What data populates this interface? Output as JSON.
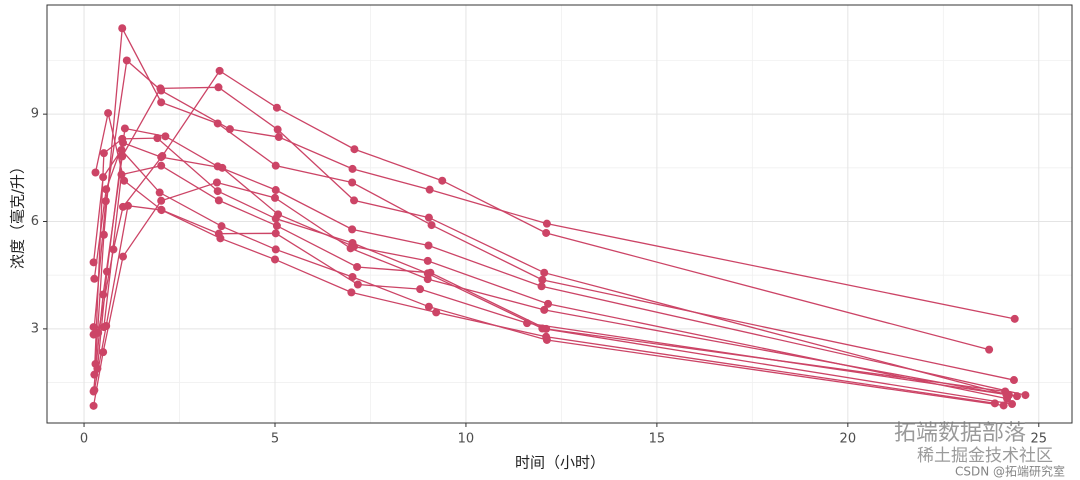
{
  "chart_data": {
    "type": "line",
    "x_label": "时间（小时）",
    "y_label": "浓度（毫克/升）",
    "color": "#cc4466",
    "grid": true,
    "minor_grid": true,
    "xlim": [
      -0.97,
      25.87
    ],
    "xticks": [
      0,
      5,
      10,
      15,
      20,
      25
    ],
    "ylim": [
      0.37,
      12.05
    ],
    "yticks": [
      3,
      6,
      9
    ],
    "series": [
      {
        "x": [
          0.25,
          0.57,
          1.12,
          2.02,
          3.82,
          5.1,
          7.03,
          9.05,
          12.12,
          24.37
        ],
        "values": [
          2.84,
          6.57,
          10.5,
          9.66,
          8.58,
          8.36,
          7.47,
          6.89,
          5.94,
          3.28
        ]
      },
      {
        "x": [
          0.27,
          0.52,
          1.0,
          1.92,
          3.5,
          5.02,
          7.03,
          9.0,
          12.0,
          24.3
        ],
        "values": [
          1.72,
          7.91,
          8.31,
          8.33,
          6.85,
          6.08,
          5.4,
          4.55,
          3.01,
          0.9
        ]
      },
      {
        "x": [
          0.27,
          0.58,
          1.02,
          2.02,
          3.62,
          5.08,
          7.07,
          9.0,
          12.15,
          24.17
        ],
        "values": [
          4.4,
          6.9,
          8.2,
          7.8,
          7.5,
          6.2,
          5.3,
          4.9,
          3.7,
          1.05
        ]
      },
      {
        "x": [
          0.35,
          0.6,
          1.07,
          2.13,
          3.5,
          5.02,
          7.02,
          9.02,
          11.98,
          24.65
        ],
        "values": [
          1.89,
          4.6,
          8.6,
          8.38,
          7.54,
          6.88,
          5.78,
          5.33,
          4.19,
          1.15
        ]
      },
      {
        "x": [
          0.3,
          0.52,
          1.0,
          2.02,
          3.5,
          5.02,
          7.02,
          9.1,
          12.0,
          24.35
        ],
        "values": [
          2.02,
          5.63,
          11.4,
          9.33,
          8.74,
          7.56,
          7.09,
          5.9,
          4.37,
          1.57
        ]
      },
      {
        "x": [
          0.27,
          0.58,
          1.15,
          2.03,
          3.57,
          5.0,
          7.0,
          9.22,
          12.1,
          23.85
        ],
        "values": [
          1.29,
          3.08,
          6.44,
          6.32,
          5.53,
          4.94,
          4.02,
          3.46,
          2.78,
          0.92
        ]
      },
      {
        "x": [
          0.25,
          0.5,
          1.02,
          2.02,
          3.48,
          5.0,
          6.98,
          9.0,
          12.05,
          24.22
        ],
        "values": [
          0.85,
          2.35,
          5.02,
          6.58,
          7.09,
          6.66,
          5.25,
          4.39,
          3.53,
          1.15
        ]
      },
      {
        "x": [
          0.25,
          0.52,
          0.98,
          2.02,
          3.53,
          5.05,
          7.15,
          9.07,
          12.1,
          24.12
        ],
        "values": [
          3.05,
          3.05,
          7.31,
          7.56,
          6.59,
          5.88,
          4.73,
          4.57,
          3.0,
          1.25
        ]
      },
      {
        "x": [
          0.3,
          0.63,
          1.05,
          2.02,
          3.53,
          5.02,
          7.17,
          8.8,
          11.6,
          24.43
        ],
        "values": [
          7.37,
          9.03,
          7.14,
          6.33,
          5.66,
          5.67,
          4.24,
          4.11,
          3.16,
          1.12
        ]
      },
      {
        "x": [
          0.37,
          0.77,
          1.02,
          2.05,
          3.55,
          5.05,
          7.08,
          9.38,
          12.1,
          23.7
        ],
        "values": [
          2.89,
          5.22,
          6.41,
          7.83,
          10.21,
          9.18,
          8.02,
          7.14,
          5.68,
          2.42
        ]
      },
      {
        "x": [
          0.25,
          0.5,
          0.98,
          1.98,
          3.6,
          5.02,
          7.03,
          9.03,
          12.12,
          24.08
        ],
        "values": [
          4.86,
          7.24,
          8.0,
          6.81,
          5.87,
          5.22,
          4.45,
          3.62,
          2.69,
          0.86
        ]
      },
      {
        "x": [
          0.25,
          0.5,
          1.0,
          2.0,
          3.52,
          5.07,
          7.07,
          9.03,
          12.05,
          24.15
        ],
        "values": [
          1.25,
          3.96,
          7.82,
          9.72,
          9.75,
          8.57,
          6.59,
          6.11,
          4.57,
          1.17
        ]
      }
    ],
    "watermarks": [
      "拓端数据部落",
      "稀土掘金技术社区",
      "CSDN @拓端研究室"
    ]
  }
}
